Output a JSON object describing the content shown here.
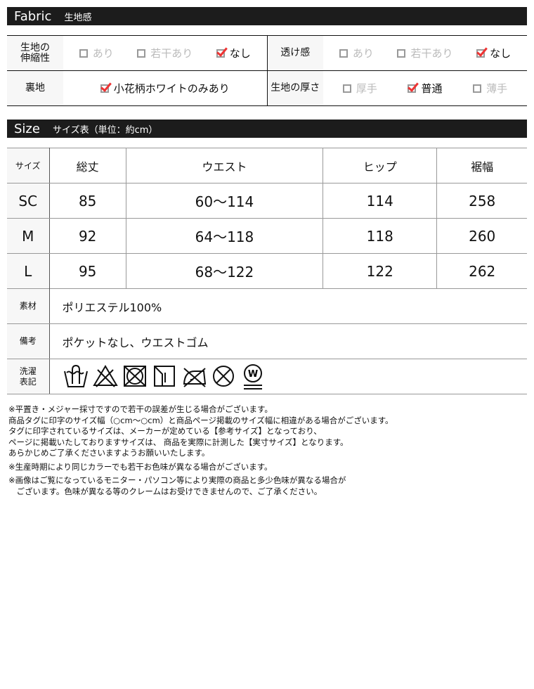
{
  "fabric": {
    "title_en": "Fabric",
    "title_jp": "生地感",
    "rows": [
      [
        {
          "label": "生地の\n伸縮性",
          "options": [
            {
              "text": "あり",
              "checked": false
            },
            {
              "text": "若干あり",
              "checked": false
            },
            {
              "text": "なし",
              "checked": true
            }
          ]
        },
        {
          "label": "透け感",
          "options": [
            {
              "text": "あり",
              "checked": false
            },
            {
              "text": "若干あり",
              "checked": false
            },
            {
              "text": "なし",
              "checked": true
            }
          ]
        }
      ],
      [
        {
          "label": "裏地",
          "options": [
            {
              "text": "小花柄ホワイトのみあり",
              "checked": true
            }
          ]
        },
        {
          "label": "生地の厚さ",
          "options": [
            {
              "text": "厚手",
              "checked": false
            },
            {
              "text": "普通",
              "checked": true
            },
            {
              "text": "薄手",
              "checked": false
            }
          ]
        }
      ]
    ]
  },
  "size": {
    "title_en": "Size",
    "title_jp": "サイズ表（単位：約cm）",
    "headers": [
      "サイズ",
      "総丈",
      "ウエスト",
      "ヒップ",
      "裾幅"
    ],
    "rows": [
      [
        "SC",
        "85",
        "60～114",
        "114",
        "258"
      ],
      [
        "M",
        "92",
        "64～118",
        "118",
        "260"
      ],
      [
        "L",
        "95",
        "68～122",
        "122",
        "262"
      ]
    ]
  },
  "info": {
    "material_label": "素材",
    "material": "ポリエステル100%",
    "remarks_label": "備考",
    "remarks": "ポケットなし、ウエストゴム",
    "wash_label": "洗濯\n表記",
    "wash_icons": [
      "hand-wash-icon",
      "no-bleach-icon",
      "no-tumble-dry-icon",
      "line-dry-shade-icon",
      "no-iron-icon",
      "no-dry-clean-icon",
      "wet-clean-gentle-icon"
    ]
  },
  "notes": [
    "※平置き・メジャー採寸ですので若干の誤差が生じる場合がございます。",
    "商品タグに印字のサイズ幅（○cm～○cm）と商品ページ掲載のサイズ幅に相違がある場合がございます。",
    "タグに印字されているサイズは、メーカーが定めている【参考サイズ】となっており、",
    "ページに掲載いたしておりますサイズは、 商品を実際に計測した【実寸サイズ】となります。",
    "あらかじめご了承くださいますようお願いいたします。",
    "※生産時期により同じカラーでも若干お色味が異なる場合がございます。",
    "※画像はご覧になっているモニター・パソコン等により実際の商品と多少色味が異なる場合が",
    "　ございます。色味が異なる等のクレームはお受けできませんので、ご了承ください。"
  ],
  "colors": {
    "header_bg": "#1c1c1c",
    "check": "#e33333",
    "label_bg": "#f7f7f7"
  }
}
